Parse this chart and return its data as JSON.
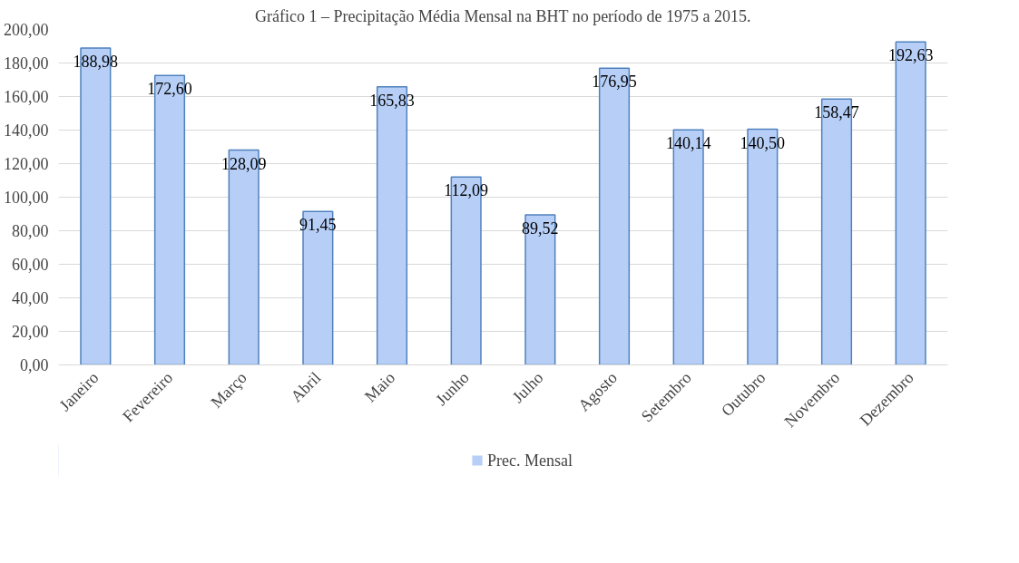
{
  "chart_data": {
    "type": "bar",
    "title": "Gráfico 1 – Precipitação Média Mensal na BHT no período de 1975 a 2015.",
    "categories": [
      "Janeiro",
      "Fevereiro",
      "Março",
      "Abril",
      "Maio",
      "Junho",
      "Julho",
      "Agosto",
      "Setembro",
      "Outubro",
      "Novembro",
      "Dezembro"
    ],
    "series": [
      {
        "name": "Prec. Mensal",
        "color": "#b7cff7",
        "values": [
          188.98,
          172.6,
          128.09,
          91.45,
          165.83,
          112.09,
          89.52,
          176.95,
          140.14,
          140.5,
          158.47,
          192.63
        ]
      }
    ],
    "value_labels": [
      "188,98",
      "172,60",
      "128,09",
      "91,45",
      "165,83",
      "112,09",
      "89,52",
      "176,95",
      "140,14",
      "140,50",
      "158,47",
      "192,63"
    ],
    "ylim": [
      0,
      200
    ],
    "yticks": [
      {
        "value": 0,
        "label": "0,00"
      },
      {
        "value": 20,
        "label": "20,00"
      },
      {
        "value": 40,
        "label": "40,00"
      },
      {
        "value": 60,
        "label": "60,00"
      },
      {
        "value": 80,
        "label": "80,00"
      },
      {
        "value": 100,
        "label": "100,00"
      },
      {
        "value": 120,
        "label": "120,00"
      },
      {
        "value": 140,
        "label": "140,00"
      },
      {
        "value": 160,
        "label": "160,00"
      },
      {
        "value": 180,
        "label": "180,00"
      },
      {
        "value": 200,
        "label": "200,00"
      }
    ],
    "grid": "y",
    "legend": "bottom"
  }
}
